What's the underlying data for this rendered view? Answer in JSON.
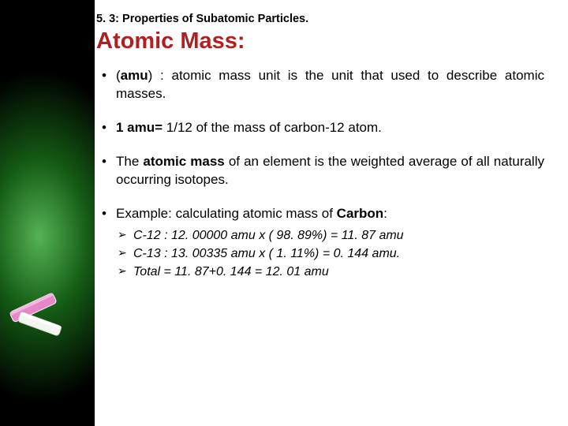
{
  "section_label": "5. 3: Properties of Subatomic Particles.",
  "title": "Atomic Mass:",
  "bullets": [
    {
      "html": "(<b>amu</b>) : atomic mass unit is the unit that used to describe atomic masses.",
      "justify": true
    },
    {
      "html": "<b>1 amu=</b> 1/12 of the mass of carbon-12 atom.",
      "justify": false
    },
    {
      "html": "The <b>atomic mass</b> of an element is the weighted average of all naturally occurring isotopes.",
      "justify": true
    },
    {
      "html": "Example: calculating atomic mass of <b>Carbon</b>:",
      "justify": false,
      "sub": [
        "C-12 : 12. 00000 amu x ( 98. 89%) = 11. 87 amu",
        "C-13 : 13. 00335 amu x ( 1. 11%) =  0. 144 amu.",
        "Total = 11. 87+0. 144 = 12. 01 amu"
      ]
    }
  ],
  "colors": {
    "title": "#b02020",
    "text": "#000000",
    "bg_glow": "#58d858"
  }
}
